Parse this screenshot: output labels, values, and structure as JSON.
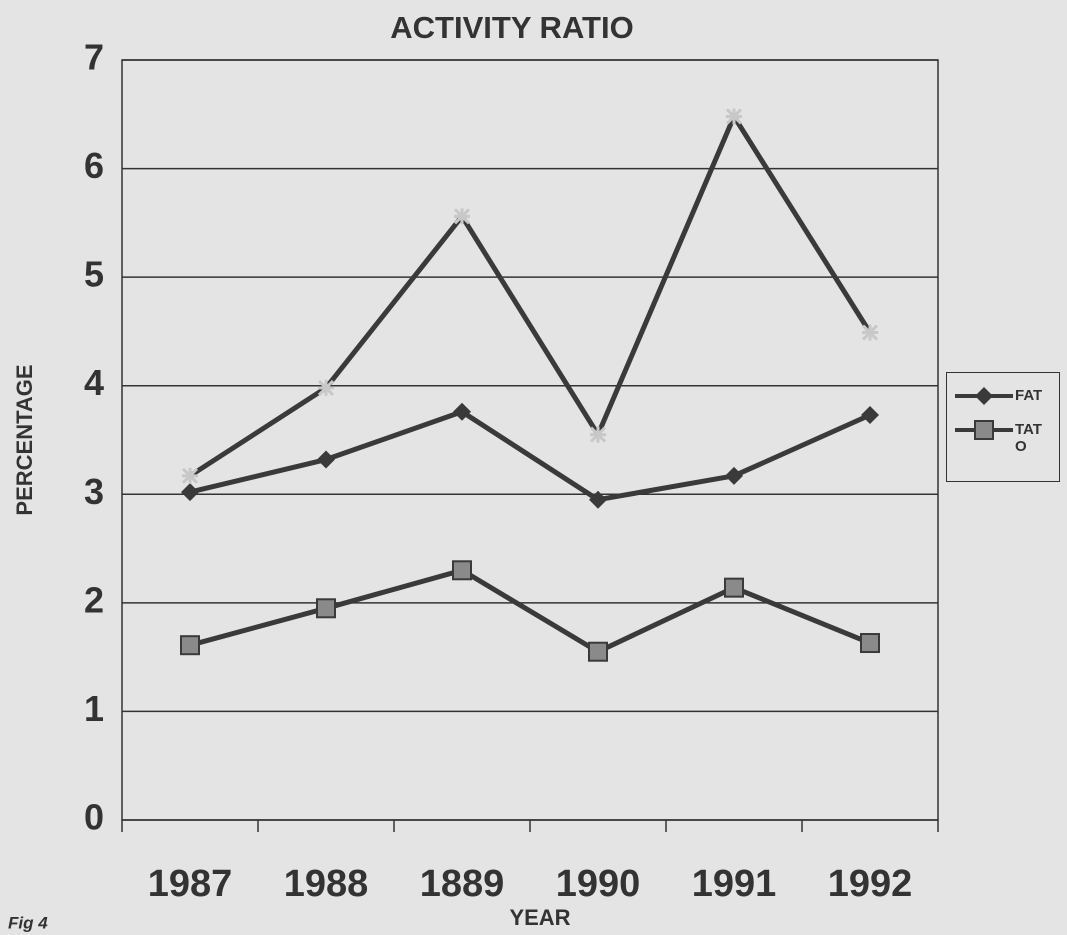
{
  "chart_data": {
    "type": "line",
    "title": "ACTIVITY RATIO",
    "x_label": "YEAR",
    "y_label": "PERCENTAGE",
    "annotation": "Fig 4",
    "categories": [
      "1987",
      "1988",
      "1889",
      "1990",
      "1991",
      "1992"
    ],
    "series": [
      {
        "name": "FAT",
        "color": "#3a3a3a",
        "marker": "diamond",
        "values": [
          3.02,
          3.32,
          3.76,
          2.95,
          3.17,
          3.73
        ]
      },
      {
        "name": "TATO",
        "color": "#3a3a3a",
        "marker": "square",
        "values": [
          1.61,
          1.95,
          2.3,
          1.55,
          2.14,
          1.63
        ]
      },
      {
        "color": "#3a3a3a",
        "marker": "star",
        "values": [
          3.17,
          3.98,
          5.56,
          3.55,
          6.48,
          4.49
        ]
      }
    ],
    "ylim": [
      0,
      7
    ],
    "yticks": [
      0,
      1,
      2,
      3,
      4,
      5,
      6,
      7
    ],
    "grid": true
  }
}
